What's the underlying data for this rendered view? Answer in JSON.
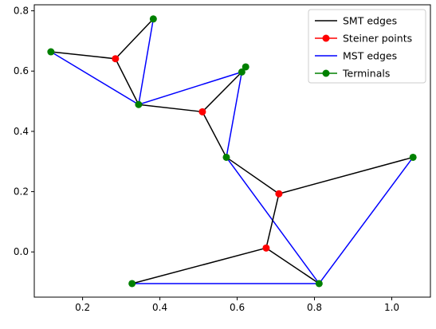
{
  "chart_data": {
    "type": "line",
    "title": "",
    "xlabel": "",
    "ylabel": "",
    "xlim": [
      0.075,
      1.1
    ],
    "ylim": [
      -0.15,
      0.82
    ],
    "xticks": [
      0.2,
      0.4,
      0.6,
      0.8,
      1.0
    ],
    "yticks": [
      0.0,
      0.2,
      0.4,
      0.6,
      0.8
    ],
    "grid": false,
    "legend_position": "top-right",
    "series": [
      {
        "name": "SMT edges",
        "kind": "segments",
        "color": "#000000",
        "marker": "none",
        "segments": [
          [
            [
              0.118,
              0.664
            ],
            [
              0.285,
              0.641
            ]
          ],
          [
            [
              0.285,
              0.641
            ],
            [
              0.383,
              0.773
            ]
          ],
          [
            [
              0.285,
              0.641
            ],
            [
              0.345,
              0.489
            ]
          ],
          [
            [
              0.345,
              0.489
            ],
            [
              0.51,
              0.465
            ]
          ],
          [
            [
              0.51,
              0.465
            ],
            [
              0.612,
              0.597
            ]
          ],
          [
            [
              0.612,
              0.597
            ],
            [
              0.622,
              0.614
            ]
          ],
          [
            [
              0.51,
              0.465
            ],
            [
              0.572,
              0.314
            ]
          ],
          [
            [
              0.572,
              0.314
            ],
            [
              0.708,
              0.193
            ]
          ],
          [
            [
              0.708,
              0.193
            ],
            [
              1.055,
              0.314
            ]
          ],
          [
            [
              0.708,
              0.193
            ],
            [
              0.675,
              0.013
            ]
          ],
          [
            [
              0.675,
              0.013
            ],
            [
              0.328,
              -0.105
            ]
          ],
          [
            [
              0.675,
              0.013
            ],
            [
              0.812,
              -0.105
            ]
          ]
        ]
      },
      {
        "name": "Steiner points",
        "kind": "points",
        "color": "#ff0000",
        "marker": "circle",
        "points": [
          [
            0.285,
            0.641
          ],
          [
            0.51,
            0.465
          ],
          [
            0.708,
            0.193
          ],
          [
            0.675,
            0.013
          ]
        ]
      },
      {
        "name": "MST edges",
        "kind": "segments",
        "color": "#0000ff",
        "marker": "none",
        "segments": [
          [
            [
              0.118,
              0.664
            ],
            [
              0.345,
              0.489
            ]
          ],
          [
            [
              0.345,
              0.489
            ],
            [
              0.383,
              0.773
            ]
          ],
          [
            [
              0.345,
              0.489
            ],
            [
              0.612,
              0.597
            ]
          ],
          [
            [
              0.612,
              0.597
            ],
            [
              0.572,
              0.314
            ]
          ],
          [
            [
              0.572,
              0.314
            ],
            [
              0.812,
              -0.105
            ]
          ],
          [
            [
              0.812,
              -0.105
            ],
            [
              1.055,
              0.314
            ]
          ],
          [
            [
              0.328,
              -0.105
            ],
            [
              0.812,
              -0.105
            ]
          ]
        ]
      },
      {
        "name": "Terminals",
        "kind": "points",
        "color": "#008000",
        "marker": "circle",
        "points": [
          [
            0.118,
            0.664
          ],
          [
            0.383,
            0.773
          ],
          [
            0.345,
            0.489
          ],
          [
            0.612,
            0.597
          ],
          [
            0.622,
            0.614
          ],
          [
            0.572,
            0.314
          ],
          [
            1.055,
            0.314
          ],
          [
            0.328,
            -0.105
          ],
          [
            0.812,
            -0.105
          ]
        ]
      }
    ]
  }
}
